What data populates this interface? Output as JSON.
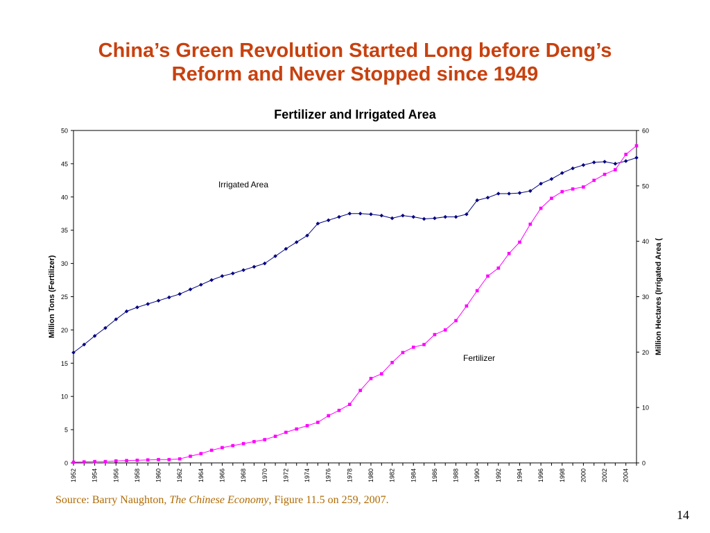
{
  "slide": {
    "title_line1": "China’s Green Revolution Started Long before Deng’s",
    "title_line2": "Reform and Never Stopped since 1949",
    "source_prefix": "Source: Barry Naughton, ",
    "source_book": "The Chinese Economy",
    "source_suffix": ", Figure 11.5 on 259, 2007.",
    "page_number": "14",
    "title_color": "#c8410f",
    "source_color": "#b06a00"
  },
  "chart_data": {
    "type": "line",
    "title": "Fertilizer and Irrigated Area",
    "ylabel": "Million Tons (Fertilizer)",
    "y2label": "Million Hectares (Irrigated Area (",
    "ylim": [
      0,
      50
    ],
    "y2lim": [
      0,
      60
    ],
    "yticks": [
      0,
      5,
      10,
      15,
      20,
      25,
      30,
      35,
      40,
      45,
      50
    ],
    "y2ticks": [
      0,
      10,
      20,
      30,
      40,
      50,
      60
    ],
    "xticks": [
      "1952",
      "1954",
      "1956",
      "1958",
      "1960",
      "1962",
      "1964",
      "1966",
      "1968",
      "1970",
      "1972",
      "1974",
      "1976",
      "1978",
      "1980",
      "1982",
      "1984",
      "1986",
      "1988",
      "1990",
      "1992",
      "1994",
      "1996",
      "1998",
      "2000",
      "2002",
      "2004"
    ],
    "x": [
      1952,
      1953,
      1954,
      1955,
      1956,
      1957,
      1958,
      1959,
      1960,
      1961,
      1962,
      1963,
      1964,
      1965,
      1966,
      1967,
      1968,
      1969,
      1970,
      1971,
      1972,
      1973,
      1974,
      1975,
      1976,
      1977,
      1978,
      1979,
      1980,
      1981,
      1982,
      1983,
      1984,
      1985,
      1986,
      1987,
      1988,
      1989,
      1990,
      1991,
      1992,
      1993,
      1994,
      1995,
      1996,
      1997,
      1998,
      1999,
      2000,
      2001,
      2002,
      2003,
      2004,
      2005
    ],
    "grid": false,
    "series": [
      {
        "name": "Irrigated Area",
        "axis": "left",
        "color": "#000080",
        "marker": "diamond",
        "values": [
          16.6,
          17.8,
          19.1,
          20.3,
          21.6,
          22.8,
          23.4,
          23.9,
          24.4,
          24.9,
          25.4,
          26.1,
          26.8,
          27.5,
          28.1,
          28.5,
          29.0,
          29.5,
          30.0,
          31.1,
          32.2,
          33.2,
          34.2,
          36.0,
          36.5,
          37.0,
          37.5,
          37.5,
          37.4,
          37.2,
          36.8,
          37.2,
          37.0,
          36.7,
          36.8,
          37.0,
          37.0,
          37.4,
          39.5,
          39.9,
          40.5,
          40.5,
          40.6,
          40.9,
          42.0,
          42.7,
          43.6,
          44.3,
          44.8,
          45.2,
          45.3,
          45.0,
          45.4,
          45.9
        ]
      },
      {
        "name": "Fertilizer",
        "axis": "left",
        "color": "#ff00ff",
        "marker": "square",
        "values": [
          0.1,
          0.15,
          0.2,
          0.2,
          0.3,
          0.35,
          0.4,
          0.45,
          0.5,
          0.5,
          0.6,
          1.0,
          1.4,
          1.9,
          2.3,
          2.6,
          2.9,
          3.2,
          3.5,
          4.0,
          4.6,
          5.1,
          5.6,
          6.1,
          7.1,
          7.9,
          8.8,
          10.9,
          12.7,
          13.4,
          15.1,
          16.6,
          17.4,
          17.8,
          19.3,
          20.0,
          21.4,
          23.6,
          25.9,
          28.1,
          29.3,
          31.5,
          33.2,
          35.9,
          38.3,
          39.8,
          40.8,
          41.2,
          41.5,
          42.5,
          43.4,
          44.1,
          46.4,
          47.7
        ]
      }
    ],
    "annotations": [
      {
        "text": "Irrigated Area",
        "series": "Irrigated Area"
      },
      {
        "text": "Fertilizer",
        "series": "Fertilizer"
      }
    ]
  }
}
